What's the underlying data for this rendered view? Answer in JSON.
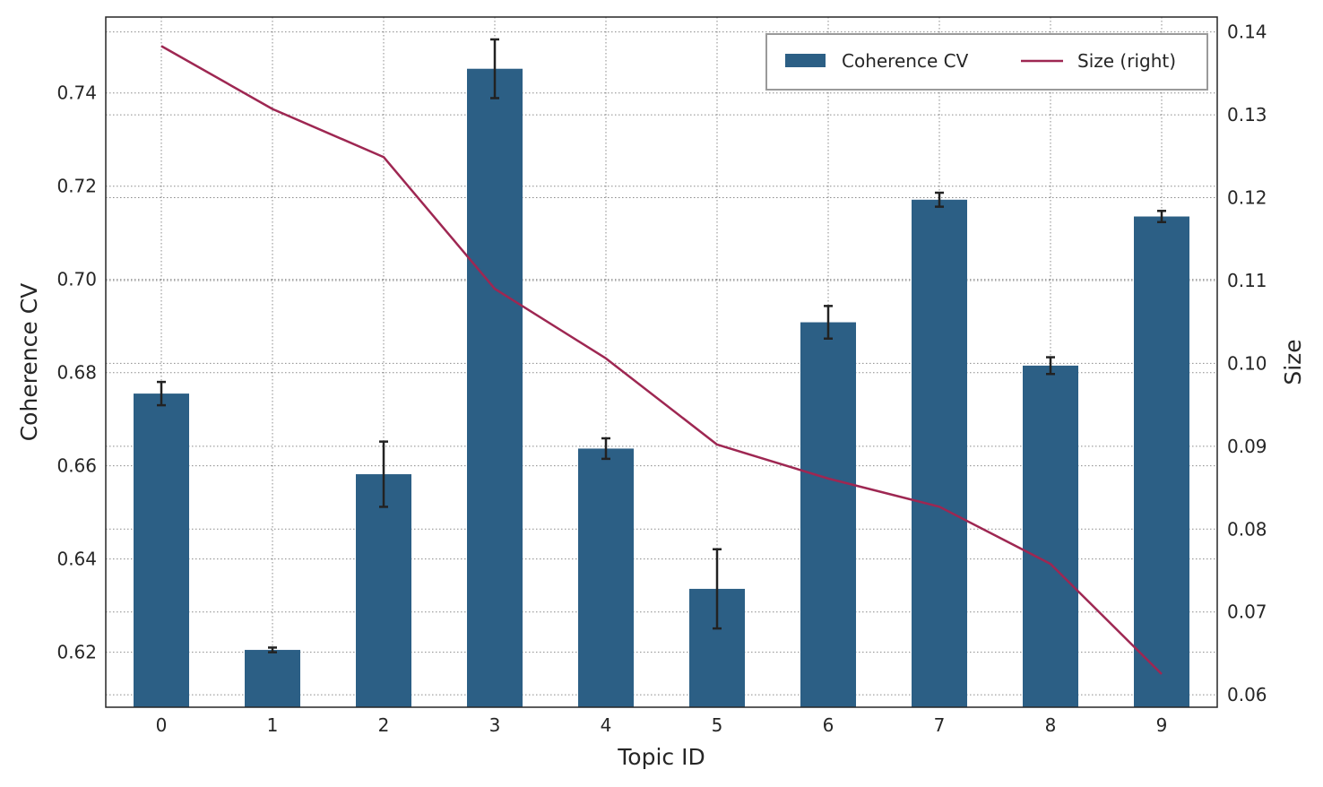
{
  "chart_data": {
    "type": "bar",
    "xlabel": "Topic ID",
    "ylabel": "Coherence CV",
    "y2label": "Size",
    "categories": [
      "0",
      "1",
      "2",
      "3",
      "4",
      "5",
      "6",
      "7",
      "8",
      "9"
    ],
    "series": [
      {
        "name": "Coherence CV",
        "type": "bar",
        "axis": "left",
        "values": [
          0.6755,
          0.6205,
          0.6582,
          0.7452,
          0.6637,
          0.6336,
          0.6908,
          0.7171,
          0.6815,
          0.7135
        ],
        "error": [
          0.0025,
          0.0005,
          0.007,
          0.0063,
          0.0022,
          0.0085,
          0.0035,
          0.0015,
          0.0018,
          0.0012
        ],
        "color": "#2c5f85"
      },
      {
        "name": "Size (right)",
        "type": "line",
        "axis": "right",
        "values": [
          0.1383,
          0.1307,
          0.1249,
          0.109,
          0.1006,
          0.0902,
          0.0861,
          0.0827,
          0.0758,
          0.0625
        ],
        "color": "#9e2752"
      }
    ],
    "ylim": [
      0.6082,
      0.7563
    ],
    "y2lim": [
      0.0585,
      0.1418
    ],
    "yticks": [
      "0.62",
      "0.64",
      "0.66",
      "0.68",
      "0.70",
      "0.72",
      "0.74"
    ],
    "y2ticks": [
      "0.06",
      "0.07",
      "0.08",
      "0.09",
      "0.10",
      "0.11",
      "0.12",
      "0.13",
      "0.14"
    ],
    "grid": true,
    "legend_position": "top-right"
  }
}
